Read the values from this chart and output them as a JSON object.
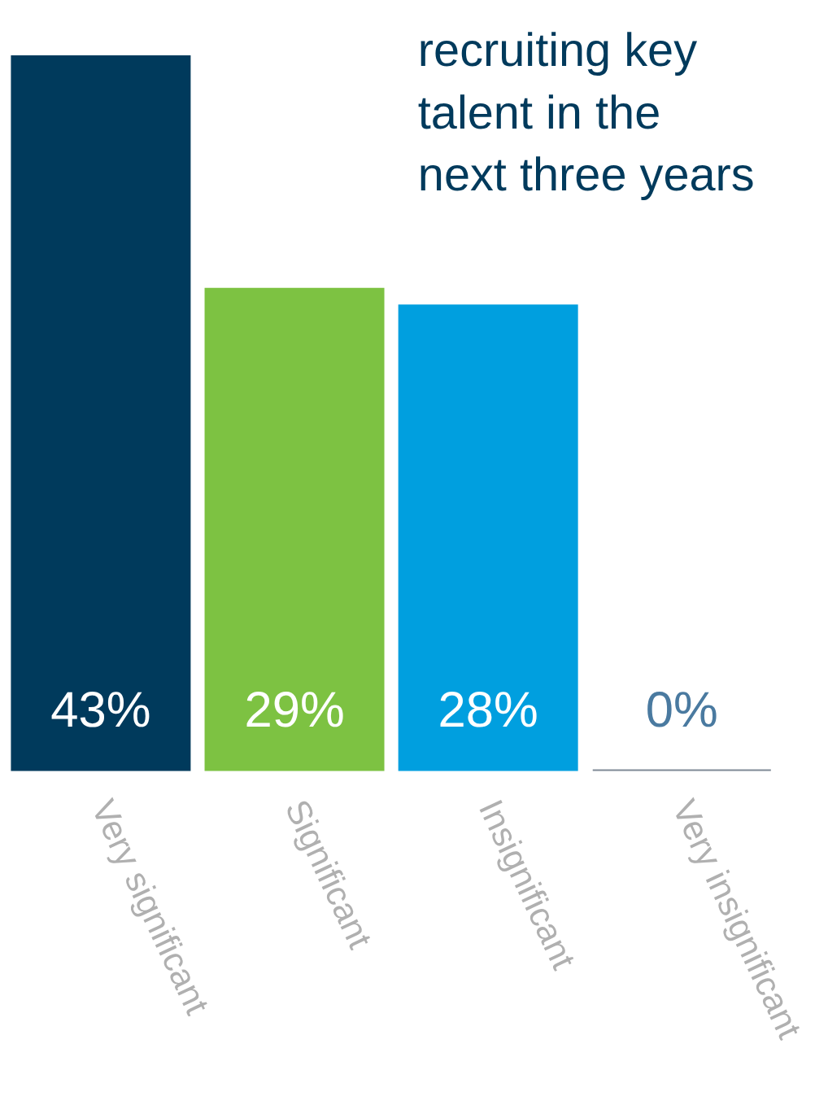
{
  "chart_data": {
    "type": "bar",
    "title": "recruiting key\ntalent in the\nnext three years",
    "categories": [
      "Very significant",
      "Significant",
      "Insignificant",
      "Very insignificant"
    ],
    "values": [
      43,
      29,
      28,
      0
    ],
    "colors": [
      "#003a5c",
      "#7dc242",
      "#009fdf",
      "#7f8a96"
    ],
    "value_labels": [
      "43%",
      "29%",
      "28%",
      "0%"
    ],
    "grid": false
  }
}
